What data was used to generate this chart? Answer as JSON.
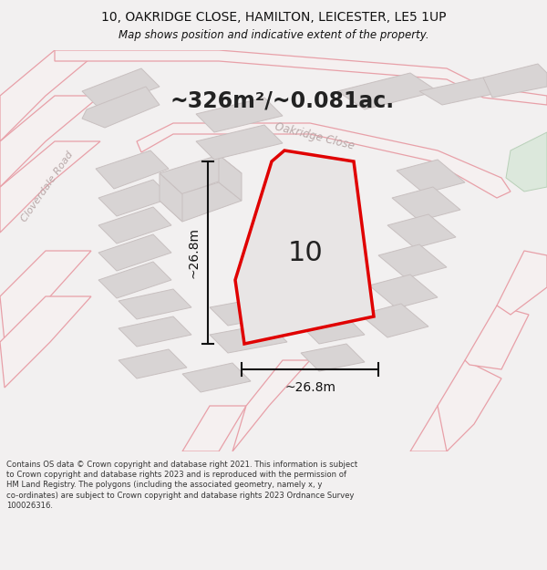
{
  "title_line1": "10, OAKRIDGE CLOSE, HAMILTON, LEICESTER, LE5 1UP",
  "title_line2": "Map shows position and indicative extent of the property.",
  "area_text": "~326m²/~0.081ac.",
  "label_10": "10",
  "dim_vertical": "~26.8m",
  "dim_horizontal": "~26.8m",
  "footer_lines": [
    "Contains OS data © Crown copyright and database right 2021. This information is subject",
    "to Crown copyright and database rights 2023 and is reproduced with the permission of",
    "HM Land Registry. The polygons (including the associated geometry, namely x, y",
    "co-ordinates) are subject to Crown copyright and database rights 2023 Ordnance Survey",
    "100026316."
  ],
  "bg_color": "#f2f0f0",
  "map_bg": "#ebebeb",
  "road_fill": "#f5f0f0",
  "road_edge": "#e8a0a8",
  "block_fill": "#d8d4d4",
  "block_edge": "#c8c0c0",
  "plot_fill": "#e8e5e5",
  "plot_red": "#e00000",
  "dim_color": "#111111",
  "text_dark": "#222222",
  "road_label": "#b8a8a8",
  "green_fill": "#dce8dc",
  "green_edge": "#b8d0b8",
  "title_color": "#111111",
  "footer_color": "#333333"
}
